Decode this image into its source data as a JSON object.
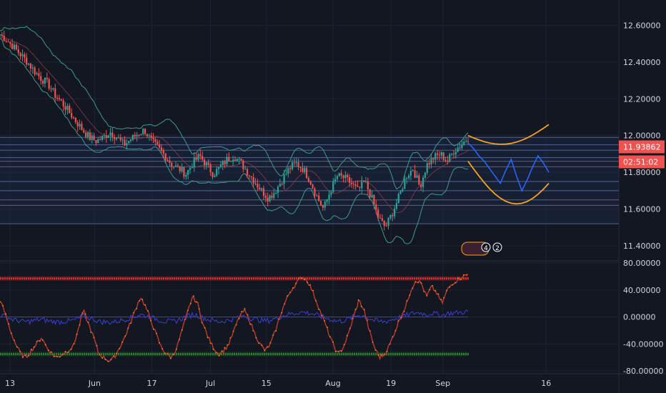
{
  "chart_data": [
    {
      "type": "candlestick",
      "panel": "price",
      "y_ticks": [
        "12.60000",
        "12.40000",
        "12.20000",
        "12.00000",
        "11.80000",
        "11.60000",
        "11.40000"
      ],
      "ylim": [
        11.33,
        12.66
      ],
      "current_price": "11.93862",
      "countdown": "02:51:02",
      "price_series": [
        12.55,
        12.52,
        12.48,
        12.44,
        12.4,
        12.35,
        12.31,
        12.28,
        12.22,
        12.18,
        12.13,
        12.08,
        12.03,
        11.99,
        11.97,
        11.99,
        12.02,
        11.99,
        11.95,
        11.98,
        12.01,
        12.03,
        11.97,
        11.93,
        11.89,
        11.84,
        11.82,
        11.79,
        11.85,
        11.89,
        11.84,
        11.79,
        11.83,
        11.87,
        11.89,
        11.85,
        11.8,
        11.75,
        11.7,
        11.66,
        11.7,
        11.76,
        11.82,
        11.85,
        11.82,
        11.76,
        11.67,
        11.6,
        11.7,
        11.78,
        11.77,
        11.74,
        11.7,
        11.75,
        11.66,
        11.55,
        11.5,
        11.58,
        11.67,
        11.78,
        11.82,
        11.72,
        11.84,
        11.88,
        11.9,
        11.86,
        11.92,
        11.95,
        11.99
      ],
      "projection": [
        11.96,
        11.93,
        11.89,
        11.86,
        11.82,
        11.78,
        11.74,
        11.81,
        11.87,
        11.78,
        11.7,
        11.76,
        11.83,
        11.89,
        11.85,
        11.8
      ],
      "horizontal_levels": [
        11.99,
        11.95,
        11.92,
        11.88,
        11.86,
        11.83,
        11.75,
        11.7,
        11.65,
        11.62,
        11.52
      ],
      "badges": [
        "4",
        "2"
      ]
    },
    {
      "type": "line",
      "panel": "oscillator",
      "y_ticks": [
        "80.00000",
        "40.00000",
        "0.00000",
        "-40.00000",
        "-80.00000"
      ],
      "ylim": [
        -83,
        80
      ],
      "upper_band": 57,
      "middle": 0,
      "lower_band": -55,
      "values": [
        25,
        5,
        -20,
        -40,
        -55,
        -60,
        -50,
        -40,
        -30,
        -45,
        -55,
        -60,
        -55,
        -50,
        -45,
        -20,
        10,
        -10,
        -30,
        -55,
        -60,
        -65,
        -60,
        -45,
        -30,
        -10,
        10,
        30,
        15,
        -5,
        -25,
        -45,
        -55,
        -60,
        -45,
        -20,
        5,
        30,
        20,
        -10,
        -30,
        -45,
        -55,
        -50,
        -40,
        -20,
        0,
        10,
        -5,
        -25,
        -40,
        -50,
        -40,
        -20,
        5,
        25,
        40,
        50,
        60,
        55,
        40,
        20,
        0,
        -20,
        -40,
        -55,
        -45,
        -25,
        0,
        25,
        10,
        -20,
        -45,
        -60,
        -55,
        -40,
        -20,
        0,
        15,
        40,
        55,
        50,
        30,
        45,
        35,
        20,
        40,
        50,
        55,
        60,
        63
      ]
    }
  ],
  "x_axis": {
    "labels": [
      {
        "label": "13",
        "pos": 0.015
      },
      {
        "label": "Jun",
        "pos": 0.142
      },
      {
        "label": "17",
        "pos": 0.228
      },
      {
        "label": "Jul",
        "pos": 0.316
      },
      {
        "label": "15",
        "pos": 0.4
      },
      {
        "label": "Aug",
        "pos": 0.5
      },
      {
        "label": "19",
        "pos": 0.587
      },
      {
        "label": "Sep",
        "pos": 0.665
      },
      {
        "label": "16",
        "pos": 0.82
      }
    ]
  },
  "colors": {
    "background": "#131722",
    "grid": "#1f2433",
    "up": "#26a69a",
    "down": "#ef5350",
    "band": "#3c8f86",
    "projection": "#2962ff",
    "projection_band": "#f7a21b",
    "levels": "#5a6b9c",
    "osc_line": "#c0392b",
    "osc_upper": "#d32f2f",
    "osc_lower": "#2e7d32",
    "osc_mid": "#3f3fd0",
    "price_label": "#ef5350",
    "text": "#d1d4dc"
  }
}
